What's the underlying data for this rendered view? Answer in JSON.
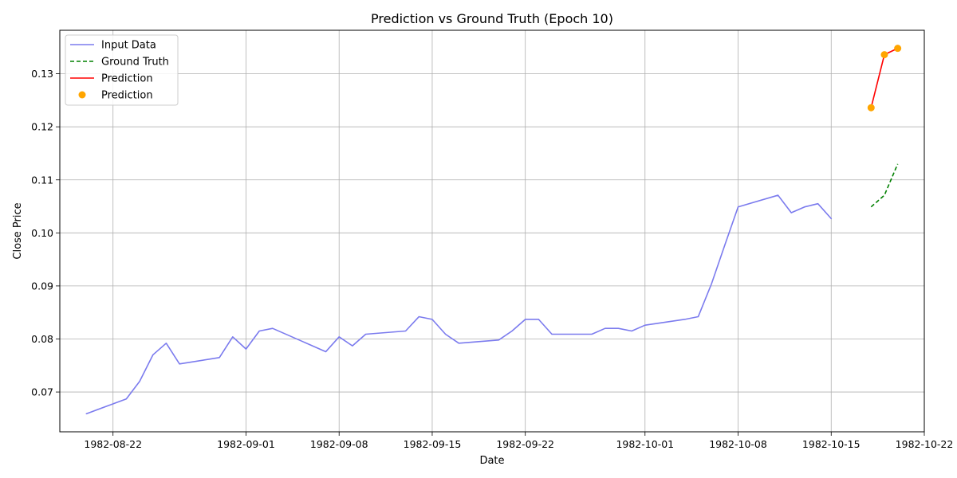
{
  "chart_data": {
    "type": "line",
    "title": "Prediction vs Ground Truth (Epoch 10)",
    "xlabel": "Date",
    "ylabel": "Close Price",
    "xlim": [
      "1982-08-18",
      "1982-10-22"
    ],
    "ylim": [
      0.0625,
      0.1382
    ],
    "x_ticks": [
      "1982-08-22",
      "1982-09-01",
      "1982-09-08",
      "1982-09-15",
      "1982-09-22",
      "1982-10-01",
      "1982-10-08",
      "1982-10-15",
      "1982-10-22"
    ],
    "y_ticks": [
      0.07,
      0.08,
      0.09,
      0.1,
      0.11,
      0.12,
      0.13
    ],
    "y_tick_labels": [
      "0.07",
      "0.08",
      "0.09",
      "0.10",
      "0.11",
      "0.12",
      "0.13"
    ],
    "grid": true,
    "legend_position": "top-left",
    "series": [
      {
        "name": "Input Data",
        "style": "line",
        "color": "#7b7bee",
        "points": [
          [
            "1982-08-20",
            0.0659
          ],
          [
            "1982-08-23",
            0.0687
          ],
          [
            "1982-08-24",
            0.072
          ],
          [
            "1982-08-25",
            0.077
          ],
          [
            "1982-08-26",
            0.0792
          ],
          [
            "1982-08-27",
            0.0753
          ],
          [
            "1982-08-30",
            0.0765
          ],
          [
            "1982-08-31",
            0.0804
          ],
          [
            "1982-09-01",
            0.0781
          ],
          [
            "1982-09-02",
            0.0815
          ],
          [
            "1982-09-03",
            0.082
          ],
          [
            "1982-09-07",
            0.0776
          ],
          [
            "1982-09-08",
            0.0804
          ],
          [
            "1982-09-09",
            0.0787
          ],
          [
            "1982-09-10",
            0.0809
          ],
          [
            "1982-09-13",
            0.0815
          ],
          [
            "1982-09-14",
            0.0842
          ],
          [
            "1982-09-15",
            0.0837
          ],
          [
            "1982-09-16",
            0.0809
          ],
          [
            "1982-09-17",
            0.0792
          ],
          [
            "1982-09-20",
            0.0798
          ],
          [
            "1982-09-21",
            0.0815
          ],
          [
            "1982-09-22",
            0.0837
          ],
          [
            "1982-09-23",
            0.0837
          ],
          [
            "1982-09-24",
            0.0809
          ],
          [
            "1982-09-27",
            0.0809
          ],
          [
            "1982-09-28",
            0.082
          ],
          [
            "1982-09-29",
            0.082
          ],
          [
            "1982-09-30",
            0.0815
          ],
          [
            "1982-10-01",
            0.0826
          ],
          [
            "1982-10-04",
            0.0837
          ],
          [
            "1982-10-05",
            0.0842
          ],
          [
            "1982-10-06",
            0.0904
          ],
          [
            "1982-10-07",
            0.0977
          ],
          [
            "1982-10-08",
            0.1049
          ],
          [
            "1982-10-11",
            0.1071
          ],
          [
            "1982-10-12",
            0.1038
          ],
          [
            "1982-10-13",
            0.1049
          ],
          [
            "1982-10-14",
            0.1055
          ],
          [
            "1982-10-15",
            0.1027
          ]
        ]
      },
      {
        "name": "Ground Truth",
        "style": "dashed",
        "color": "#008000",
        "points": [
          [
            "1982-10-18",
            0.1049
          ],
          [
            "1982-10-19",
            0.1071
          ],
          [
            "1982-10-20",
            0.113
          ]
        ]
      },
      {
        "name": "Prediction",
        "style": "line",
        "color": "#ff0000",
        "points": [
          [
            "1982-10-18",
            0.1236
          ],
          [
            "1982-10-19",
            0.1336
          ],
          [
            "1982-10-20",
            0.1348
          ]
        ]
      },
      {
        "name": "Prediction",
        "style": "scatter",
        "color": "#ffa500",
        "points": [
          [
            "1982-10-18",
            0.1236
          ],
          [
            "1982-10-19",
            0.1336
          ],
          [
            "1982-10-20",
            0.1348
          ]
        ]
      }
    ]
  }
}
